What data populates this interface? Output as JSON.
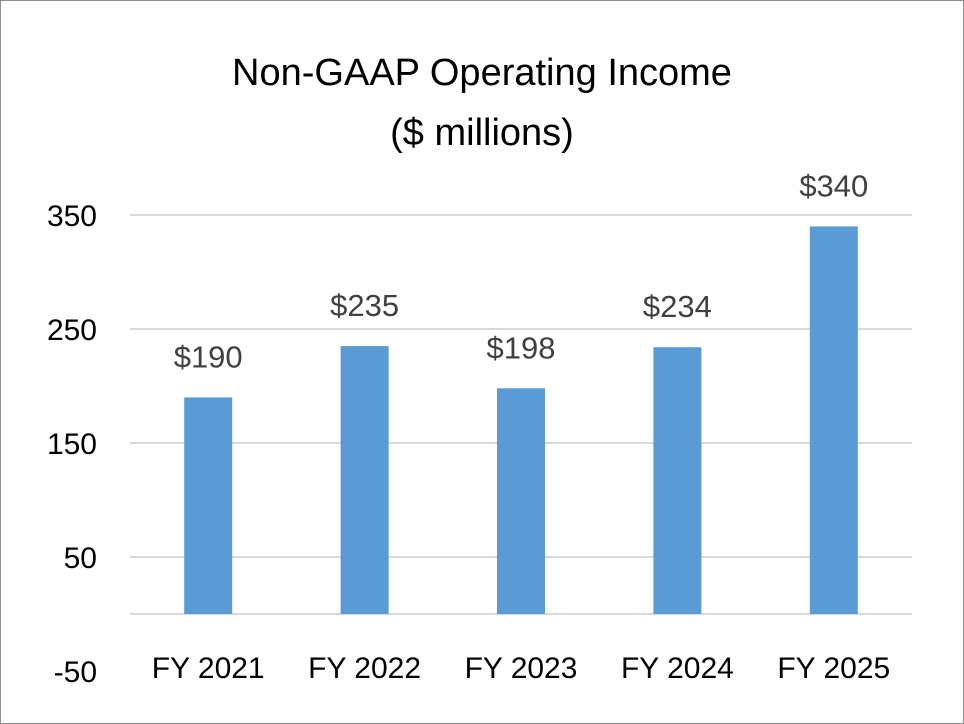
{
  "chart_data": {
    "type": "bar",
    "title": [
      "Non-GAAP Operating Income",
      "($ millions)"
    ],
    "categories": [
      "FY 2021",
      "FY 2022",
      "FY 2023",
      "FY 2024",
      "FY 2025"
    ],
    "values": [
      190,
      235,
      198,
      234,
      340
    ],
    "data_labels": [
      "$190",
      "$235",
      "$198",
      "$234",
      "$340"
    ],
    "y_ticks": [
      350,
      250,
      150,
      50,
      -50
    ],
    "ylim": [
      0,
      350
    ],
    "grid": true,
    "legend": "none",
    "colors": {
      "bar": "#5b9bd5",
      "grid": "#d9d9d9",
      "data_label": "#404040"
    }
  }
}
